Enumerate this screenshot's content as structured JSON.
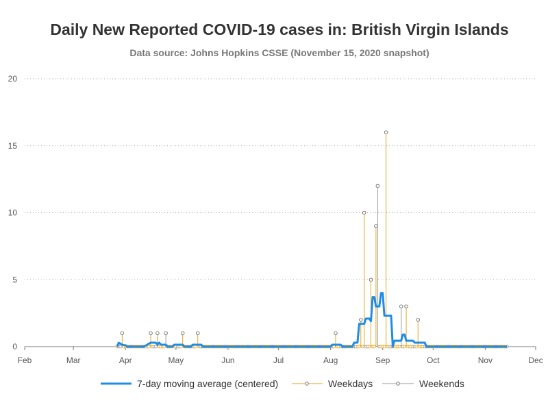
{
  "chart_data": {
    "type": "line",
    "title": "Daily New Reported COVID-19 cases in: British Virgin Islands",
    "subtitle": "Data source: Johns Hopkins CSSE (November 15, 2020 snapshot)",
    "xlabel": "",
    "ylabel": "",
    "ylim": [
      0,
      20
    ],
    "yticks": [
      0,
      5,
      10,
      15,
      20
    ],
    "xlim": [
      "2020-02-01",
      "2020-12-01"
    ],
    "xticks": [
      {
        "date": "2020-02-01",
        "label": "Feb"
      },
      {
        "date": "2020-03-01",
        "label": "Mar"
      },
      {
        "date": "2020-04-01",
        "label": "Apr"
      },
      {
        "date": "2020-05-01",
        "label": "May"
      },
      {
        "date": "2020-06-01",
        "label": "Jun"
      },
      {
        "date": "2020-07-01",
        "label": "Jul"
      },
      {
        "date": "2020-08-01",
        "label": "Aug"
      },
      {
        "date": "2020-09-01",
        "label": "Sep"
      },
      {
        "date": "2020-10-01",
        "label": "Oct"
      },
      {
        "date": "2020-11-01",
        "label": "Nov"
      },
      {
        "date": "2020-12-01",
        "label": "Dec"
      }
    ],
    "grid": "horizontal dotted",
    "legend_position": "bottom",
    "data_range": [
      "2020-03-27",
      "2020-11-14"
    ],
    "series": [
      {
        "name": "7-day moving average (centered)",
        "kind": "line",
        "color": "#1f8ce6",
        "points": [
          [
            "2020-03-27",
            0
          ],
          [
            "2020-03-28",
            0.3
          ],
          [
            "2020-03-29",
            0.2
          ],
          [
            "2020-03-30",
            0.15
          ],
          [
            "2020-04-01",
            0.1
          ],
          [
            "2020-04-02",
            0
          ],
          [
            "2020-04-12",
            0
          ],
          [
            "2020-04-14",
            0.15
          ],
          [
            "2020-04-16",
            0.3
          ],
          [
            "2020-04-19",
            0.3
          ],
          [
            "2020-04-20",
            0.15
          ],
          [
            "2020-04-21",
            0.3
          ],
          [
            "2020-04-22",
            0.15
          ],
          [
            "2020-04-25",
            0.15
          ],
          [
            "2020-04-26",
            0
          ],
          [
            "2020-04-29",
            0
          ],
          [
            "2020-04-30",
            0.15
          ],
          [
            "2020-05-05",
            0.15
          ],
          [
            "2020-05-06",
            0
          ],
          [
            "2020-05-10",
            0
          ],
          [
            "2020-05-11",
            0.15
          ],
          [
            "2020-05-16",
            0.15
          ],
          [
            "2020-05-17",
            0
          ],
          [
            "2020-08-01",
            0
          ],
          [
            "2020-08-02",
            0.15
          ],
          [
            "2020-08-07",
            0.15
          ],
          [
            "2020-08-08",
            0
          ],
          [
            "2020-08-14",
            0
          ],
          [
            "2020-08-15",
            0.3
          ],
          [
            "2020-08-17",
            0.3
          ],
          [
            "2020-08-18",
            1.7
          ],
          [
            "2020-08-21",
            1.7
          ],
          [
            "2020-08-22",
            2.1
          ],
          [
            "2020-08-24",
            2.1
          ],
          [
            "2020-08-25",
            1.9
          ],
          [
            "2020-08-26",
            3.7
          ],
          [
            "2020-08-27",
            3.7
          ],
          [
            "2020-08-28",
            3.0
          ],
          [
            "2020-08-30",
            3.0
          ],
          [
            "2020-08-31",
            4.0
          ],
          [
            "2020-09-01",
            4.0
          ],
          [
            "2020-09-02",
            2.3
          ],
          [
            "2020-09-06",
            2.3
          ],
          [
            "2020-09-07",
            0
          ],
          [
            "2020-09-08",
            0.45
          ],
          [
            "2020-09-12",
            0.45
          ],
          [
            "2020-09-13",
            0.9
          ],
          [
            "2020-09-14",
            0.9
          ],
          [
            "2020-09-15",
            0.45
          ],
          [
            "2020-09-19",
            0.45
          ],
          [
            "2020-09-20",
            0.3
          ],
          [
            "2020-09-26",
            0.3
          ],
          [
            "2020-09-27",
            0
          ],
          [
            "2020-11-14",
            0
          ]
        ]
      },
      {
        "name": "Weekdays",
        "kind": "needle",
        "color": "#e8a317",
        "points": [
          [
            "2020-03-30",
            1
          ],
          [
            "2020-04-16",
            1
          ],
          [
            "2020-04-20",
            1
          ],
          [
            "2020-05-05",
            1
          ],
          [
            "2020-05-14",
            1
          ],
          [
            "2020-08-04",
            1
          ],
          [
            "2020-08-19",
            2
          ],
          [
            "2020-08-21",
            10
          ],
          [
            "2020-08-25",
            5
          ],
          [
            "2020-08-28",
            9
          ],
          [
            "2020-09-03",
            16
          ],
          [
            "2020-09-15",
            3
          ],
          [
            "2020-09-22",
            2
          ]
        ]
      },
      {
        "name": "Weekends",
        "kind": "needle",
        "color": "#999999",
        "points": [
          [
            "2020-04-25",
            1
          ],
          [
            "2020-08-29",
            12
          ],
          [
            "2020-09-12",
            3
          ]
        ]
      }
    ]
  }
}
